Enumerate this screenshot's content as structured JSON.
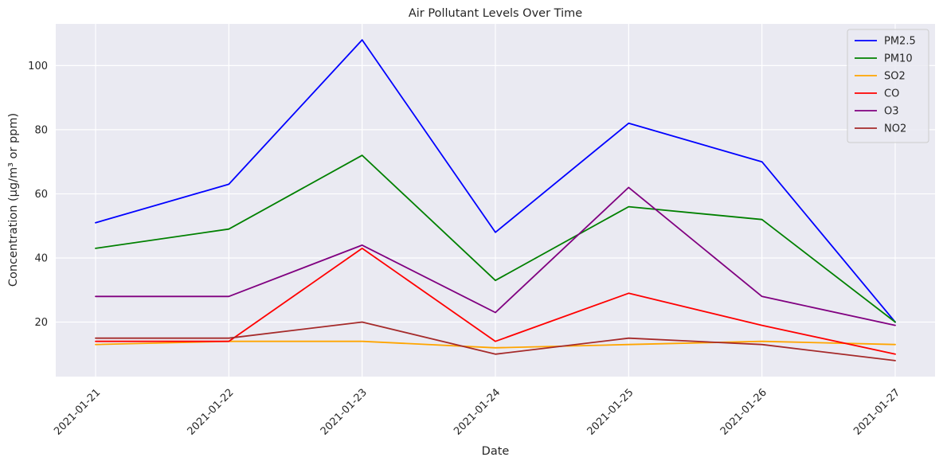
{
  "chart_data": {
    "type": "line",
    "title": "Air Pollutant Levels Over Time",
    "xlabel": "Date",
    "ylabel": "Concentration (µg/m³ or ppm)",
    "categories": [
      "2021-01-21",
      "2021-01-22",
      "2021-01-23",
      "2021-01-24",
      "2021-01-25",
      "2021-01-26",
      "2021-01-27"
    ],
    "yticks": [
      20,
      40,
      60,
      80,
      100
    ],
    "ylim": [
      3,
      113
    ],
    "grid": true,
    "legend_position": "top-right",
    "series": [
      {
        "name": "PM2.5",
        "color": "#0000ff",
        "values": [
          51,
          63,
          108,
          48,
          82,
          70,
          20
        ]
      },
      {
        "name": "PM10",
        "color": "#008000",
        "values": [
          43,
          49,
          72,
          33,
          56,
          52,
          20
        ]
      },
      {
        "name": "SO2",
        "color": "#ffa500",
        "values": [
          13,
          14,
          14,
          12,
          13,
          14,
          13
        ]
      },
      {
        "name": "CO",
        "color": "#ff0000",
        "values": [
          14,
          14,
          43,
          14,
          29,
          19,
          10
        ]
      },
      {
        "name": "O3",
        "color": "#800080",
        "values": [
          28,
          28,
          44,
          23,
          62,
          28,
          19
        ]
      },
      {
        "name": "NO2",
        "color": "#a52a2a",
        "values": [
          15,
          15,
          20,
          10,
          15,
          13,
          8
        ]
      }
    ]
  }
}
